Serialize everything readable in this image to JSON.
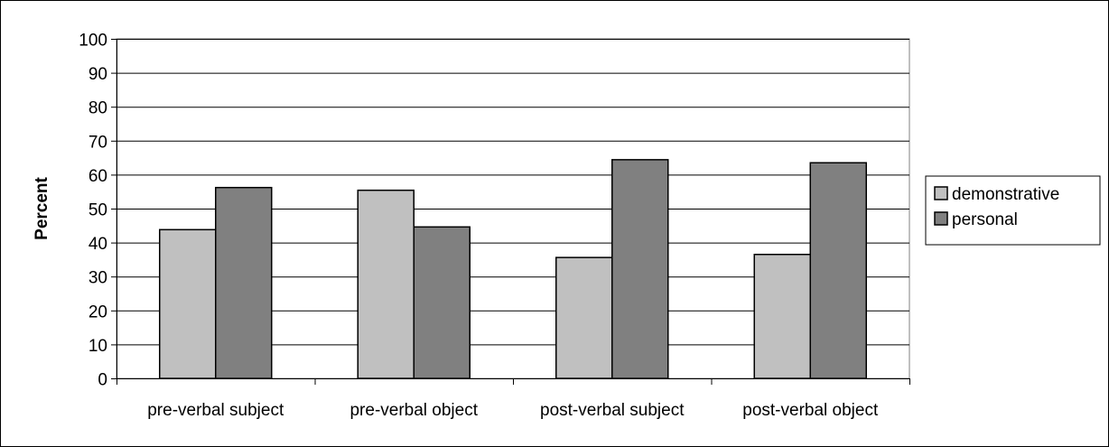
{
  "chart_data": {
    "type": "bar",
    "title": "",
    "xlabel": "",
    "ylabel": "Percent",
    "ylim": [
      0,
      100
    ],
    "yticks": [
      0,
      10,
      20,
      30,
      40,
      50,
      60,
      70,
      80,
      90,
      100
    ],
    "grid": true,
    "legend_position": "right",
    "categories": [
      "pre-verbal subject",
      "pre-verbal object",
      "post-verbal subject",
      "post-verbal object"
    ],
    "series": [
      {
        "name": "demonstrative",
        "color": "#c0c0c0",
        "values": [
          43.8,
          55.4,
          35.6,
          36.5
        ]
      },
      {
        "name": "personal",
        "color": "#808080",
        "values": [
          56.2,
          44.6,
          64.4,
          63.5
        ]
      }
    ]
  }
}
